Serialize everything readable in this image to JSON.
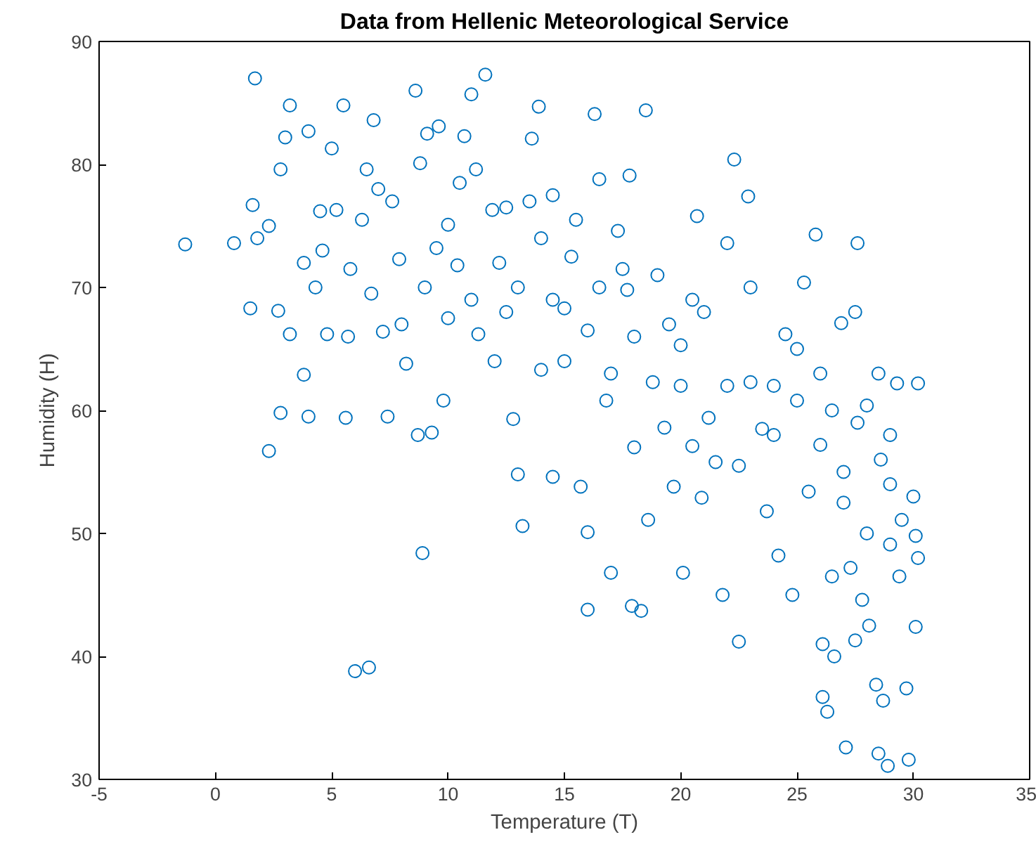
{
  "chart_data": {
    "type": "scatter",
    "title": "Data from Hellenic Meteorological Service",
    "xlabel": "Temperature (T)",
    "ylabel": "Humidity (H)",
    "xlim": [
      -5,
      35
    ],
    "ylim": [
      30,
      90
    ],
    "xticks": [
      -5,
      0,
      5,
      10,
      15,
      20,
      25,
      30,
      35
    ],
    "yticks": [
      30,
      40,
      50,
      60,
      70,
      80,
      90
    ],
    "grid": false,
    "marker": "circle",
    "series": [
      {
        "color": "#0072bd",
        "x": [
          -1.3,
          0.8,
          1.5,
          1.6,
          1.7,
          1.8,
          2.3,
          2.3,
          2.7,
          2.8,
          2.8,
          3.0,
          3.2,
          3.2,
          3.8,
          3.8,
          4.0,
          4.0,
          4.3,
          4.5,
          4.6,
          4.8,
          5.0,
          5.2,
          5.5,
          5.6,
          5.7,
          5.8,
          6.0,
          6.3,
          6.5,
          6.6,
          6.7,
          6.8,
          7.0,
          7.2,
          7.4,
          7.6,
          7.9,
          8.2,
          8.6,
          8.7,
          8.8,
          8.9,
          9.1,
          9.3,
          9.5,
          9.6,
          9.8,
          10.0,
          10.4,
          10.7,
          11.0,
          11.2,
          11.3,
          11.6,
          11.9,
          12.2,
          12.5,
          12.8,
          13.0,
          13.2,
          13.6,
          13.9,
          14.0,
          14.5,
          14.5,
          15.0,
          15.3,
          15.7,
          16.0,
          16.0,
          16.3,
          16.5,
          16.8,
          17.0,
          17.3,
          17.7,
          17.8,
          17.9,
          18.3,
          18.5,
          18.6,
          18.8,
          19.3,
          19.7,
          20.0,
          20.1,
          20.5,
          20.7,
          20.9,
          21.2,
          21.5,
          21.8,
          22.0,
          22.3,
          22.5,
          22.9,
          23.0,
          23.5,
          23.7,
          24.2,
          24.5,
          24.8,
          25.0,
          25.3,
          25.5,
          25.8,
          26.0,
          26.1,
          26.1,
          26.3,
          26.5,
          26.6,
          26.9,
          27.1,
          27.3,
          27.5,
          27.6,
          27.8,
          28.0,
          28.1,
          28.4,
          28.5,
          28.7,
          28.9,
          29.0,
          29.3,
          29.4,
          29.5,
          29.7,
          29.8,
          30.0,
          30.1,
          30.2,
          30.1,
          30.2,
          27.6,
          28.6,
          27.0,
          26.0,
          24.0,
          22.0,
          21.0,
          19.0,
          18.0,
          16.5,
          15.0,
          14.0,
          13.0,
          12.0,
          11.0,
          10.0,
          9.0,
          8.0,
          17.0,
          19.5,
          22.5,
          25.0,
          27.0,
          28.0,
          23.0,
          20.0,
          18.0,
          16.0,
          14.5,
          12.5,
          10.5,
          13.5,
          15.5,
          17.5,
          20.5,
          24.0,
          26.5,
          28.5,
          29.0,
          27.5,
          29.0
        ],
        "values": [
          73.5,
          73.6,
          68.3,
          76.7,
          87,
          74,
          75,
          56.7,
          68.1,
          59.8,
          79.6,
          82.2,
          84.8,
          66.2,
          62.9,
          72,
          59.5,
          82.7,
          70,
          76.2,
          73,
          66.2,
          81.3,
          76.3,
          84.8,
          59.4,
          66,
          71.5,
          38.8,
          75.5,
          79.6,
          39.1,
          69.5,
          83.6,
          78,
          66.4,
          59.5,
          77,
          72.3,
          63.8,
          86,
          58,
          80.1,
          48.4,
          82.5,
          58.2,
          73.2,
          83.1,
          60.8,
          75.1,
          71.8,
          82.3,
          85.7,
          79.6,
          66.2,
          87.3,
          76.3,
          72.0,
          68,
          59.3,
          54.8,
          50.6,
          82.1,
          84.7,
          63.3,
          77.5,
          54.6,
          68.3,
          72.5,
          53.8,
          50.1,
          43.8,
          84.1,
          78.8,
          60.8,
          46.8,
          74.6,
          69.8,
          79.1,
          44.1,
          43.7,
          84.4,
          51.1,
          62.3,
          58.6,
          53.8,
          65.3,
          46.8,
          57.1,
          75.8,
          52.9,
          59.4,
          55.8,
          45.0,
          73.6,
          80.4,
          41.2,
          77.4,
          62.3,
          58.5,
          51.8,
          48.2,
          66.2,
          45.0,
          60.8,
          70.4,
          53.4,
          74.3,
          57.2,
          41.0,
          36.7,
          35.5,
          46.5,
          40.0,
          67.1,
          32.6,
          47.2,
          41.3,
          73.6,
          44.6,
          60.4,
          42.5,
          37.7,
          32.1,
          36.4,
          31.1,
          49.1,
          62.2,
          46.5,
          51.1,
          37.4,
          31.6,
          53.0,
          42.4,
          62.2,
          49.8,
          48.0,
          59.0,
          56.0,
          52.5,
          63.0,
          58.0,
          62.0,
          68.0,
          71.0,
          66.0,
          70.0,
          64.0,
          74.0,
          70.0,
          64.0,
          69.0,
          67.5,
          70.0,
          67.0,
          63.0,
          67.0,
          55.5,
          65.0,
          55.0,
          50.0,
          70.0,
          62.0,
          57.0,
          66.5,
          69.0,
          76.5,
          78.5,
          77.0,
          75.5,
          71.5,
          69.0,
          62.0,
          60.0,
          63.0,
          58.0,
          68.0,
          54.0
        ]
      }
    ]
  }
}
